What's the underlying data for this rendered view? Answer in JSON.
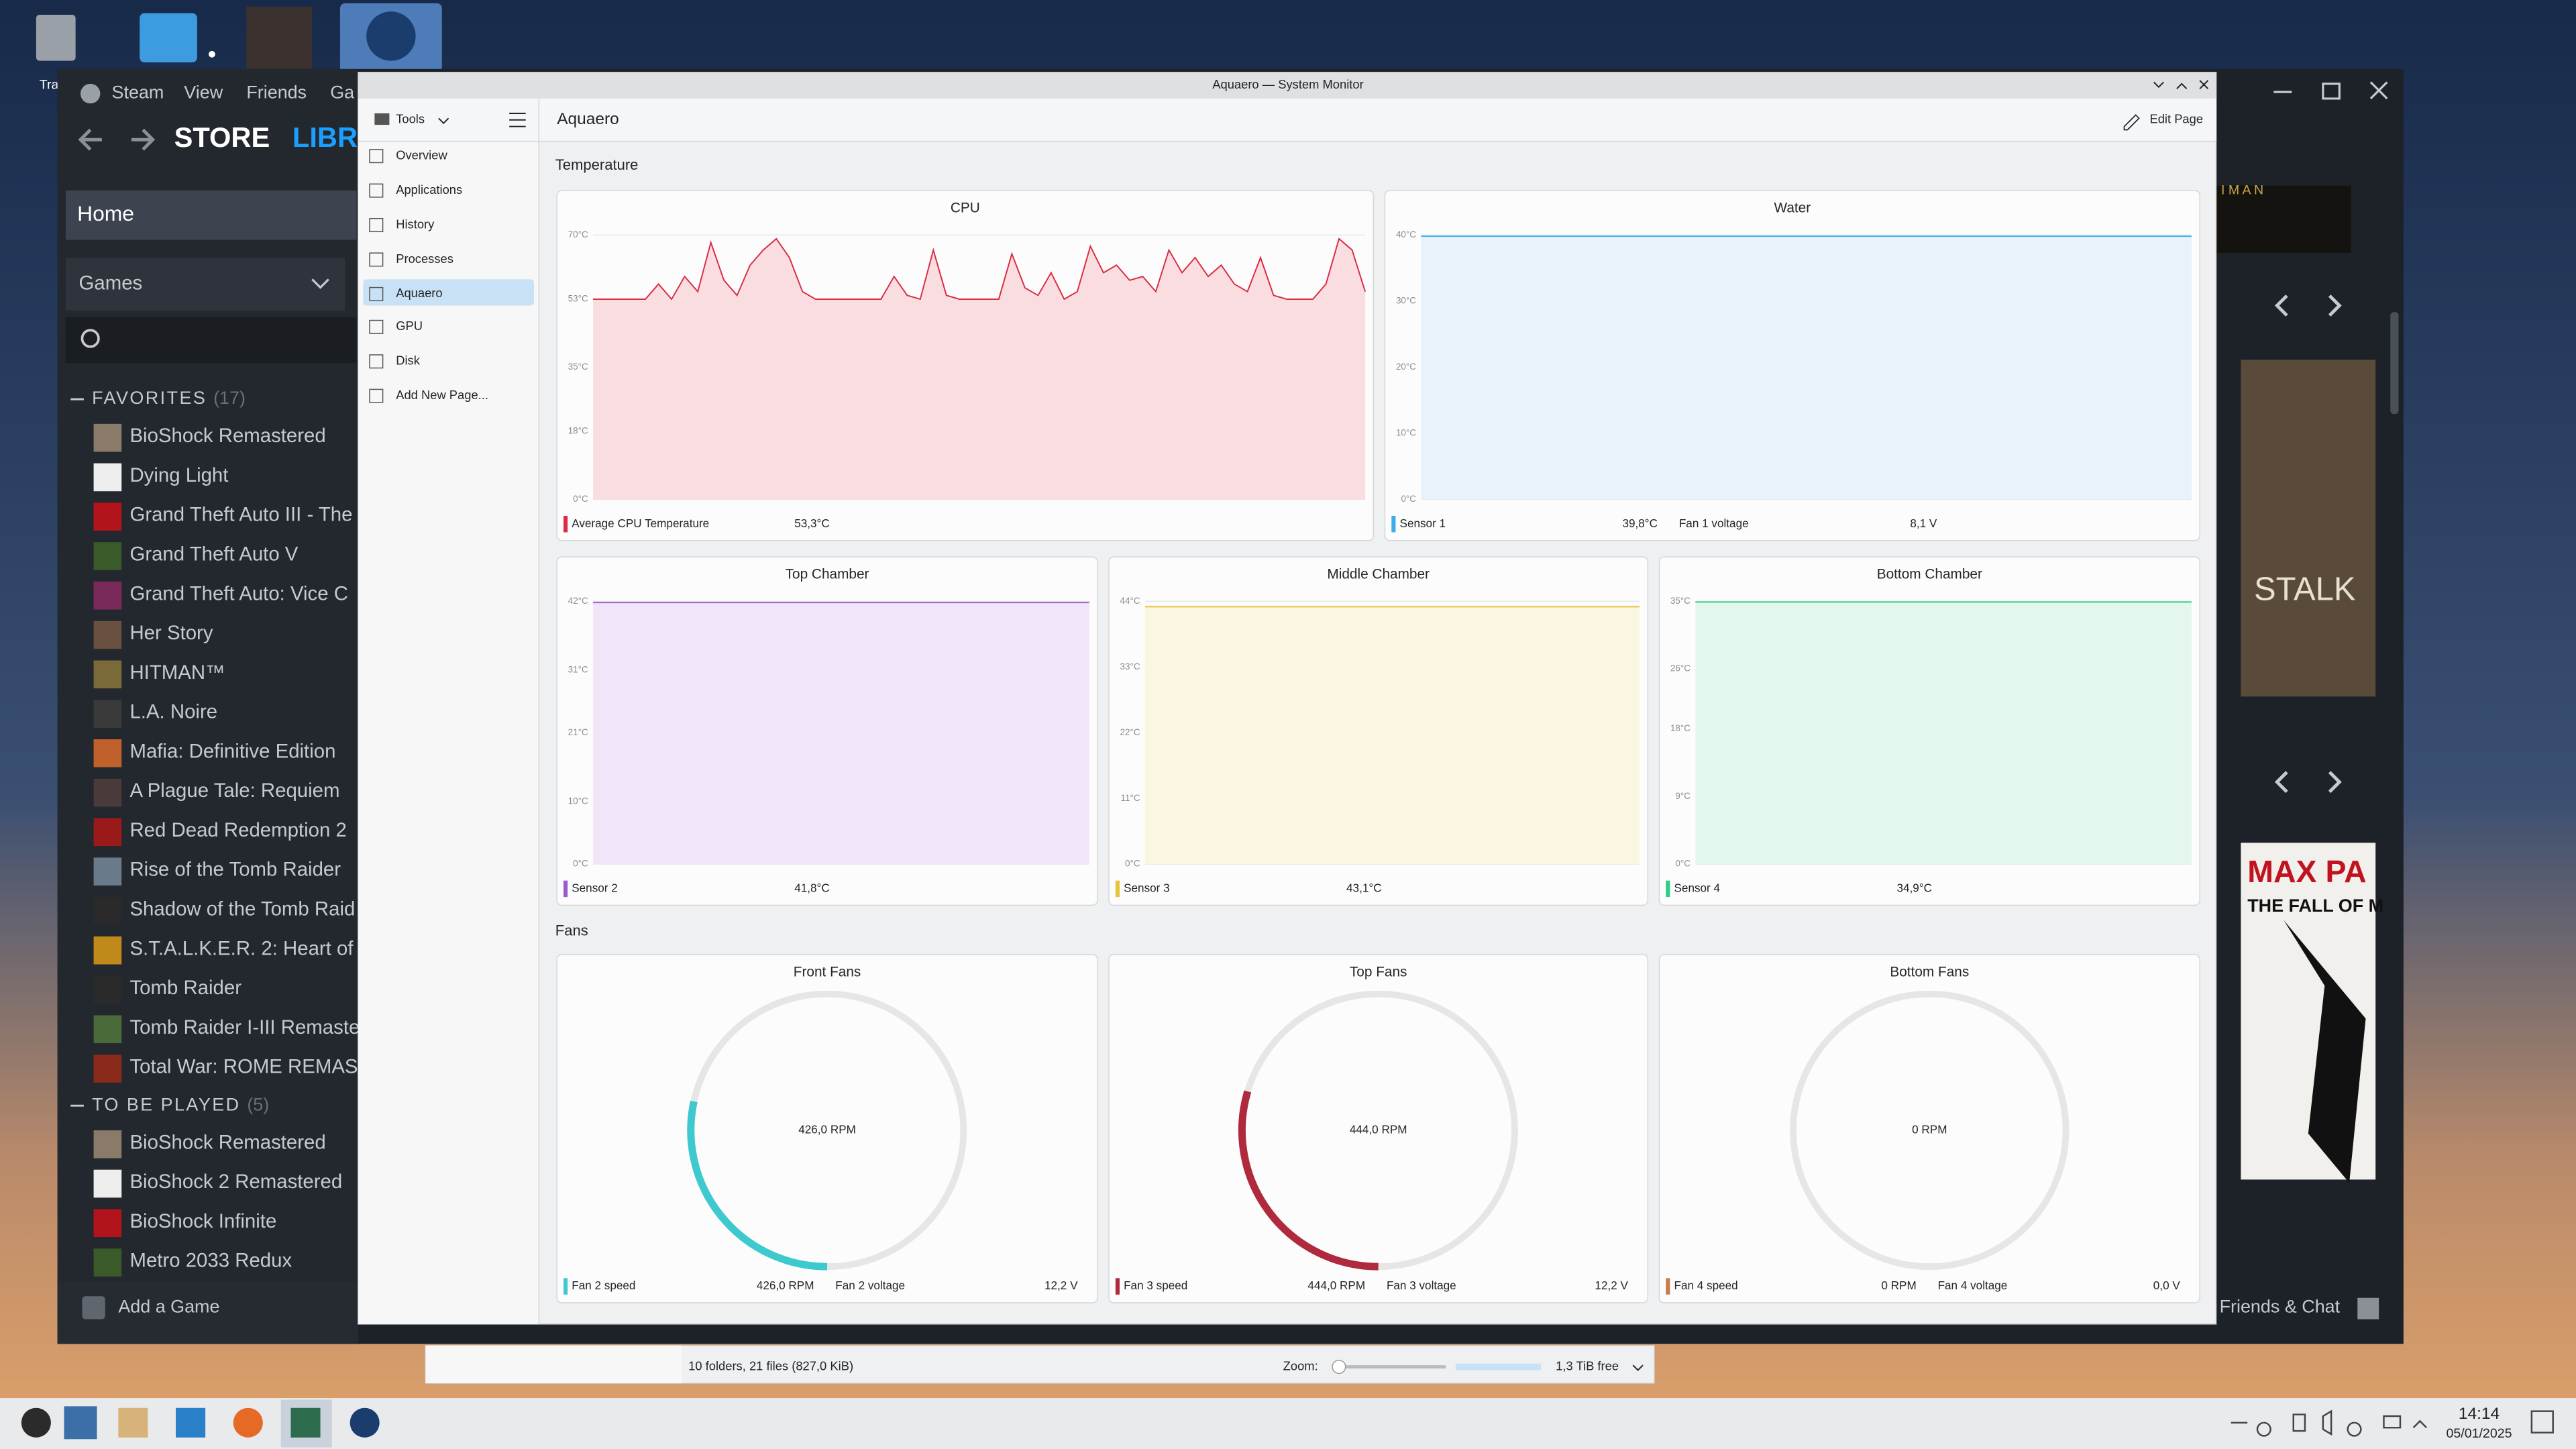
{
  "desktop": {
    "trash_label": "Tra"
  },
  "steam": {
    "menu": [
      "Steam",
      "View",
      "Friends",
      "Ga"
    ],
    "nav": [
      "STORE",
      "LIBRA"
    ],
    "home": "Home",
    "games": "Games",
    "favorites": {
      "label": "FAVORITES",
      "count": "(17)",
      "items": [
        "BioShock Remastered",
        "Dying Light",
        "Grand Theft Auto III - The",
        "Grand Theft Auto V",
        "Grand Theft Auto: Vice C",
        "Her Story",
        "HITMAN™",
        "L.A. Noire",
        "Mafia: Definitive Edition",
        "A Plague Tale: Requiem",
        "Red Dead Redemption 2",
        "Rise of the Tomb Raider",
        "Shadow of the Tomb Raid",
        "S.T.A.L.K.E.R. 2: Heart of",
        "Tomb Raider",
        "Tomb Raider I-III Remaste",
        "Total War: ROME REMAS"
      ]
    },
    "to_be_played": {
      "label": "TO BE PLAYED",
      "count": "(5)",
      "items": [
        "BioShock Remastered",
        "BioShock 2 Remastered",
        "BioShock Infinite",
        "Metro 2033 Redux"
      ]
    },
    "add_game": "Add a Game",
    "friends_chat": "Friends & Chat",
    "art": [
      "I M A N",
      "STALK",
      "MAX PA",
      "THE FALL OF M"
    ]
  },
  "monitor": {
    "window_title": "Aquaero — System Monitor",
    "tools": "Tools",
    "page_title": "Aquaero",
    "edit": "Edit Page",
    "sidebar": [
      "Overview",
      "Applications",
      "History",
      "Processes",
      "Aquaero",
      "GPU",
      "Disk",
      "Add New Page..."
    ],
    "sections": [
      "Temperature",
      "Fans"
    ]
  },
  "file_manager": {
    "status": "10 folders, 21 files (827,0 KiB)",
    "zoom": "Zoom:",
    "free": "1,3 TiB free"
  },
  "taskbar": {
    "time": "14:14",
    "date": "05/01/2025"
  },
  "chart_data": [
    {
      "type": "line",
      "title": "CPU",
      "ylim": [
        0,
        70
      ],
      "yticks": [
        {
          "value": 0,
          "label": "0°C"
        },
        {
          "value": 18,
          "label": "18°C"
        },
        {
          "value": 35,
          "label": "35°C"
        },
        {
          "value": 53,
          "label": "53°C"
        },
        {
          "value": 70,
          "label": "70°C"
        }
      ],
      "series": [
        {
          "name": "Average CPU Temperature",
          "color": "#da2c43",
          "fill": "#fadde1",
          "current": "53,3°C",
          "values": [
            53,
            53,
            53,
            53,
            53,
            57,
            53,
            59,
            55,
            68,
            58,
            54,
            62,
            66,
            69,
            64,
            55,
            53,
            53,
            53,
            53,
            53,
            53,
            59,
            54,
            53,
            66,
            54,
            53,
            53,
            53,
            53,
            65,
            56,
            54,
            60,
            53,
            55,
            67,
            60,
            62,
            58,
            59,
            55,
            66,
            60,
            64,
            59,
            62,
            57,
            55,
            64,
            54,
            53,
            53,
            53,
            57,
            69,
            66,
            55
          ]
        }
      ],
      "readings": []
    },
    {
      "type": "line",
      "title": "Water",
      "ylim": [
        0,
        40
      ],
      "yticks": [
        {
          "value": 0,
          "label": "0°C"
        },
        {
          "value": 10,
          "label": "10°C"
        },
        {
          "value": 20,
          "label": "20°C"
        },
        {
          "value": 30,
          "label": "30°C"
        },
        {
          "value": 40,
          "label": "40°C"
        }
      ],
      "series": [
        {
          "name": "Sensor 1",
          "color": "#3daee9",
          "fill": "#e8f2fa",
          "current": "39,8°C",
          "values": [
            39.8,
            39.8,
            39.8,
            39.8,
            39.8,
            39.8,
            39.8,
            39.8,
            39.8,
            39.8,
            39.8,
            39.8
          ]
        }
      ],
      "readings": [
        {
          "name": "Fan 1 voltage",
          "label": "8,1 V"
        }
      ]
    },
    {
      "type": "line",
      "title": "Top Chamber",
      "ylim": [
        0,
        42
      ],
      "yticks": [
        {
          "value": 0,
          "label": "0°C"
        },
        {
          "value": 10,
          "label": "10°C"
        },
        {
          "value": 21,
          "label": "21°C"
        },
        {
          "value": 31,
          "label": "31°C"
        },
        {
          "value": 42,
          "label": "42°C"
        }
      ],
      "series": [
        {
          "name": "Sensor 2",
          "color": "#9b59d0",
          "fill": "#f1e5f9",
          "current": "41,8°C",
          "values": [
            41.8,
            41.8,
            41.8,
            41.8,
            41.8,
            41.8,
            41.8,
            41.8,
            41.8,
            41.8,
            41.8,
            41.8
          ]
        }
      ],
      "readings": []
    },
    {
      "type": "line",
      "title": "Middle Chamber",
      "ylim": [
        0,
        44
      ],
      "yticks": [
        {
          "value": 0,
          "label": "0°C"
        },
        {
          "value": 11,
          "label": "11°C"
        },
        {
          "value": 22,
          "label": "22°C"
        },
        {
          "value": 33,
          "label": "33°C"
        },
        {
          "value": 44,
          "label": "44°C"
        }
      ],
      "series": [
        {
          "name": "Sensor 3",
          "color": "#e5c33a",
          "fill": "#faf6e2",
          "current": "43,1°C",
          "values": [
            43.1,
            43.1,
            43.1,
            43.1,
            43.1,
            43.1,
            43.1,
            43.1,
            43.1,
            43.1,
            43.1,
            43.1
          ]
        }
      ],
      "readings": []
    },
    {
      "type": "line",
      "title": "Bottom Chamber",
      "ylim": [
        0,
        35
      ],
      "yticks": [
        {
          "value": 0,
          "label": "0°C"
        },
        {
          "value": 9,
          "label": "9°C"
        },
        {
          "value": 18,
          "label": "18°C"
        },
        {
          "value": 26,
          "label": "26°C"
        },
        {
          "value": 35,
          "label": "35°C"
        }
      ],
      "series": [
        {
          "name": "Sensor 4",
          "color": "#2ecc87",
          "fill": "#e3f7ed",
          "current": "34,9°C",
          "values": [
            34.9,
            34.9,
            34.9,
            34.9,
            34.9,
            34.9,
            34.9,
            34.9,
            34.9,
            34.9,
            34.9,
            34.9
          ]
        }
      ],
      "readings": []
    },
    {
      "type": "gauge",
      "title": "Front Fans",
      "range": [
        0,
        1500
      ],
      "series": [
        {
          "name": "Fan 2 speed",
          "color": "#3ec9cf",
          "values": [
            426
          ],
          "value_labels": [
            "426,0 RPM"
          ]
        }
      ],
      "readings": [
        {
          "name": "Fan 2 voltage",
          "label": "12,2 V"
        }
      ]
    },
    {
      "type": "gauge",
      "title": "Top Fans",
      "range": [
        0,
        1500
      ],
      "series": [
        {
          "name": "Fan 3 speed",
          "color": "#b02a3e",
          "values": [
            444
          ],
          "value_labels": [
            "444,0 RPM"
          ]
        }
      ],
      "readings": [
        {
          "name": "Fan 3 voltage",
          "label": "12,2 V"
        }
      ]
    },
    {
      "type": "gauge",
      "title": "Bottom Fans",
      "range": [
        0,
        1500
      ],
      "series": [
        {
          "name": "Fan 4 speed",
          "color": "#c97b4c",
          "values": [
            0
          ],
          "value_labels": [
            "0 RPM"
          ]
        }
      ],
      "readings": [
        {
          "name": "Fan 4 voltage",
          "label": "0,0 V"
        }
      ]
    }
  ]
}
